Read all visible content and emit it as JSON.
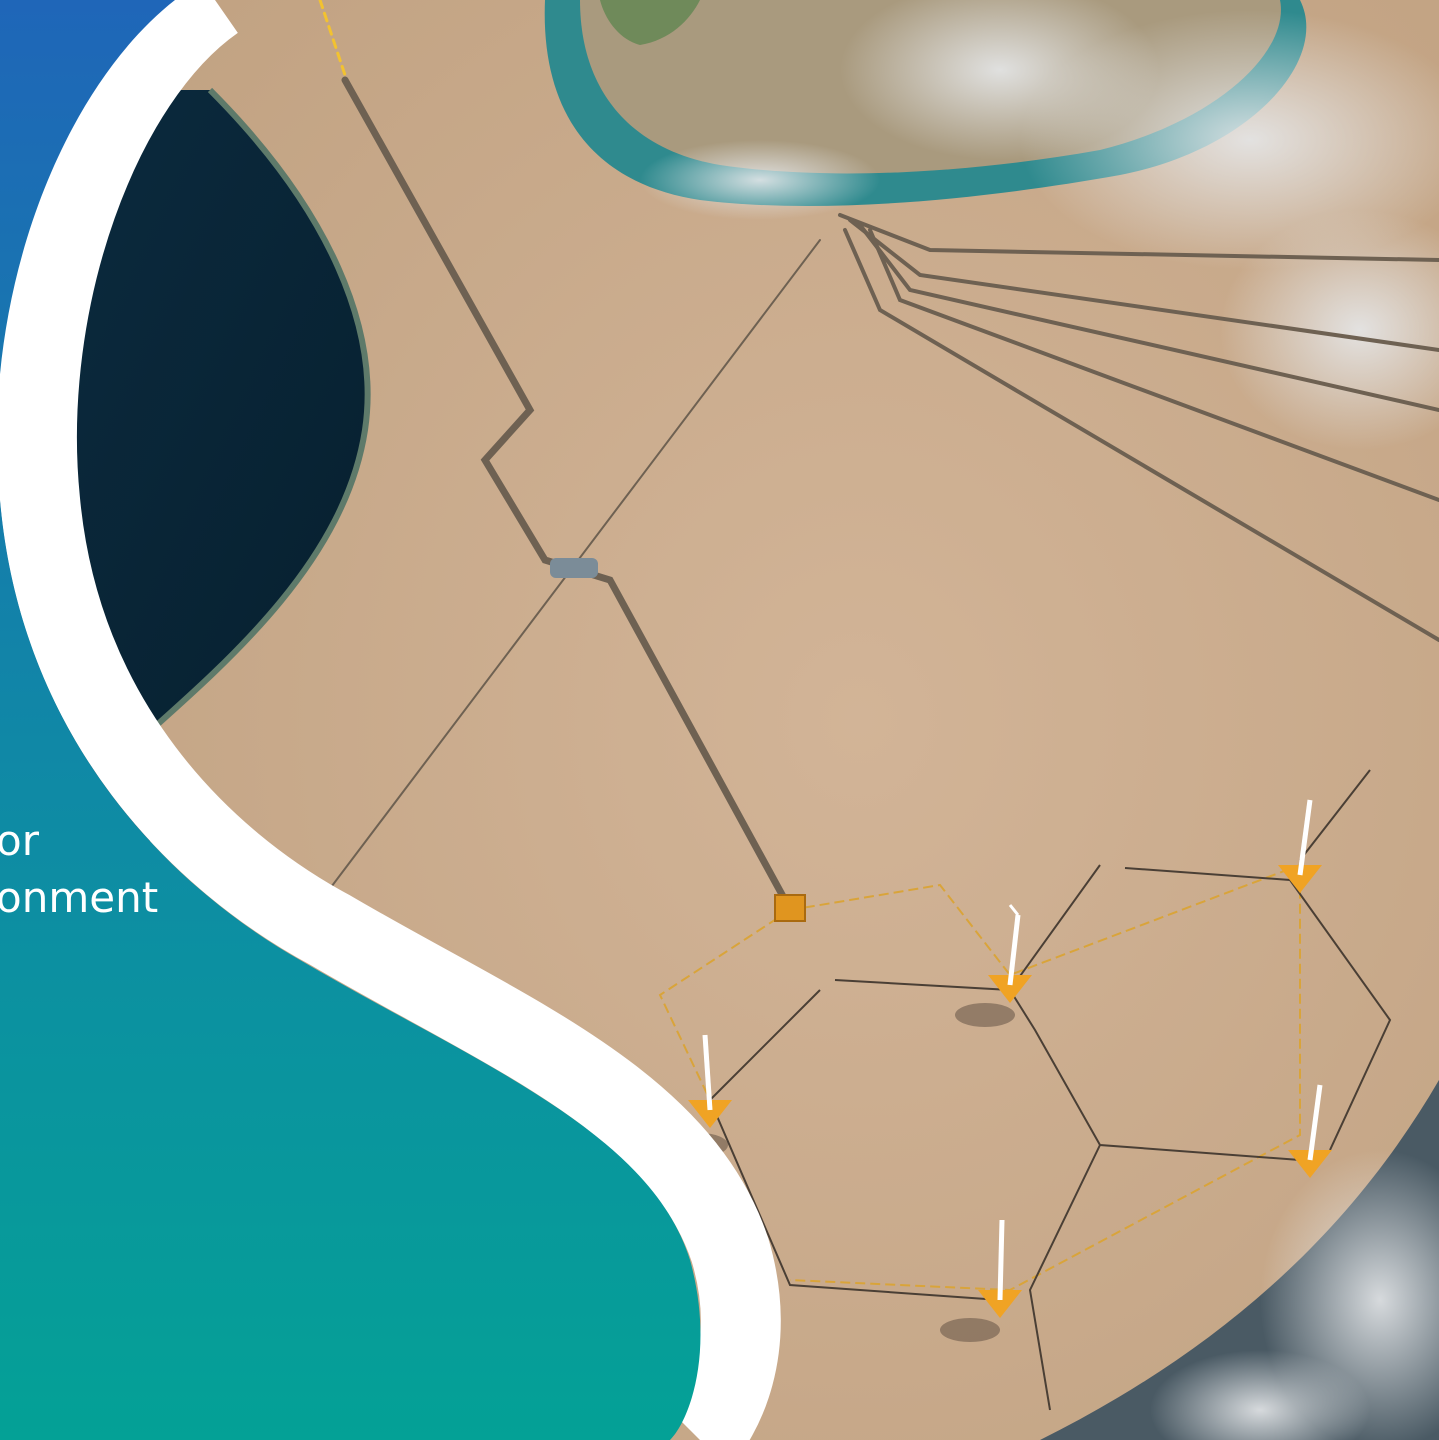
{
  "text": {
    "lines": [
      "or",
      "onment"
    ]
  }
}
